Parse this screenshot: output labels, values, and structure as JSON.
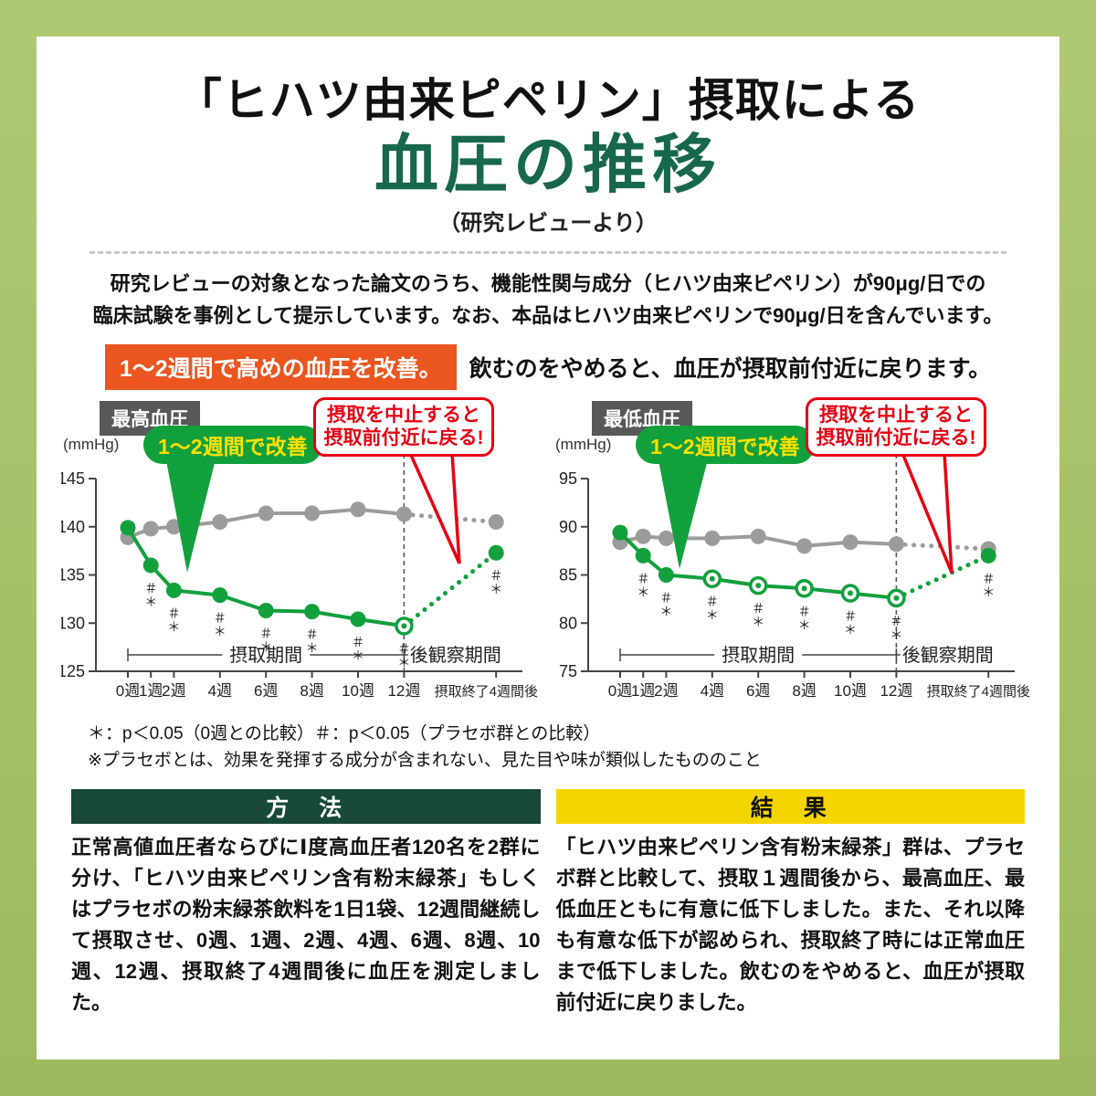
{
  "page": {
    "border_color": "#a5c168",
    "title_line1": "「ヒハツ由来ピペリン」摂取による",
    "title_line2": "血圧の推移",
    "title_line2_color": "#17684a",
    "subtitle": "（研究レビューより）",
    "intro_line1": "研究レビューの対象となった論文のうち、機能性関与成分（ヒハツ由来ピペリン）が90μg/日での",
    "intro_line2": "臨床試験を事例として提示しています。なお、本品はヒハツ由来ピペリンで90μg/日を含んでいます。"
  },
  "callout": {
    "highlight": "1～2週間で高めの血圧を改善。",
    "highlight_bg": "#ea5520",
    "note": "飲むのをやめると、血圧が摂取前付近に戻ります。"
  },
  "bubbles": {
    "improve": "1～2週間で改善",
    "improve_bg": "#12a03c",
    "improve_text_color": "#ffe100",
    "stop_line1": "摂取を中止すると",
    "stop_line2": "摂取前付近に戻る!",
    "stop_color": "#e50012"
  },
  "footnotes": {
    "line1": "＊：p＜0.05（0週との比較）＃：p＜0.05（プラセボ群との比較）",
    "line2": "※プラセボとは、効果を発揮する成分が含まれない、見た目や味が類似したもののこと"
  },
  "method": {
    "header": "方　法",
    "header_bg": "#17483a",
    "body": "正常高値血圧者ならびにⅠ度高血圧者120名を2群に分け、「ヒハツ由来ピペリン含有粉末緑茶」もしくはプラセボの粉末緑茶飲料を1日1袋、12週間継続して摂取させ、0週、1週、2週、4週、6週、8週、10週、12週、摂取終了4週間後に血圧を測定しました。"
  },
  "result": {
    "header": "結　果",
    "header_bg": "#f5d500",
    "body": "「ヒハツ由来ピペリン含有粉末緑茶」群は、プラセボ群と比較して、摂取１週間後から、最高血圧、最低血圧ともに有意に低下しました。また、それ以降も有意な低下が認められ、摂取終了時には正常血圧まで低下しました。飲むのをやめると、血圧が摂取前付近に戻りました。",
    "body_highlight": "摂取１週間後から、最高血圧、最低血圧ともに有意に低下"
  },
  "chart_data": [
    {
      "type": "line",
      "title": "最高血圧",
      "unit_label": "(mmHg)",
      "ylim": [
        125,
        145
      ],
      "yticks": [
        125,
        130,
        135,
        140,
        145
      ],
      "x_weeks": [
        0,
        1,
        2,
        4,
        6,
        8,
        10,
        12,
        16
      ],
      "x_labels": [
        "0週",
        "1週",
        "2週",
        "4週",
        "6週",
        "8週",
        "10週",
        "12週",
        "摂取終了4週間後"
      ],
      "intake_label": "摂取期間",
      "post_label": "後観察期間",
      "dashed_at_week": 12,
      "dotted_from_index": 7,
      "series": [
        {
          "name": "ヒハツ由来ピペリン群",
          "color": "#12a03c",
          "values": [
            139.9,
            136.0,
            133.4,
            132.9,
            131.3,
            131.2,
            130.4,
            129.7,
            137.3
          ],
          "open_marker_indices": [
            7
          ],
          "sig_indices": [
            1,
            2,
            3,
            4,
            5,
            6,
            7,
            8
          ],
          "sig_top": "＃",
          "sig_bottom": "＊"
        },
        {
          "name": "プラセボ群",
          "color": "#9b9b9b",
          "values": [
            138.9,
            139.8,
            140.0,
            140.5,
            141.4,
            141.4,
            141.8,
            141.3,
            140.5
          ],
          "open_marker_indices": [],
          "sig_indices": []
        }
      ]
    },
    {
      "type": "line",
      "title": "最低血圧",
      "unit_label": "(mmHg)",
      "ylim": [
        75,
        95
      ],
      "yticks": [
        75,
        80,
        85,
        90,
        95
      ],
      "x_weeks": [
        0,
        1,
        2,
        4,
        6,
        8,
        10,
        12,
        16
      ],
      "x_labels": [
        "0週",
        "1週",
        "2週",
        "4週",
        "6週",
        "8週",
        "10週",
        "12週",
        "摂取終了4週間後"
      ],
      "intake_label": "摂取期間",
      "post_label": "後観察期間",
      "dashed_at_week": 12,
      "dotted_from_index": 7,
      "series": [
        {
          "name": "ヒハツ由来ピペリン群",
          "color": "#12a03c",
          "values": [
            89.4,
            87.0,
            85.0,
            84.6,
            83.9,
            83.6,
            83.1,
            82.6,
            87.0
          ],
          "open_marker_indices": [
            3,
            4,
            5,
            6,
            7
          ],
          "sig_indices": [
            1,
            2,
            3,
            4,
            5,
            6,
            7,
            8
          ],
          "sig_top": "＃",
          "sig_bottom": "＊"
        },
        {
          "name": "プラセボ群",
          "color": "#9b9b9b",
          "values": [
            88.4,
            89.0,
            88.8,
            88.8,
            89.0,
            88.0,
            88.4,
            88.2,
            87.7
          ],
          "open_marker_indices": [],
          "sig_indices": []
        }
      ]
    }
  ]
}
